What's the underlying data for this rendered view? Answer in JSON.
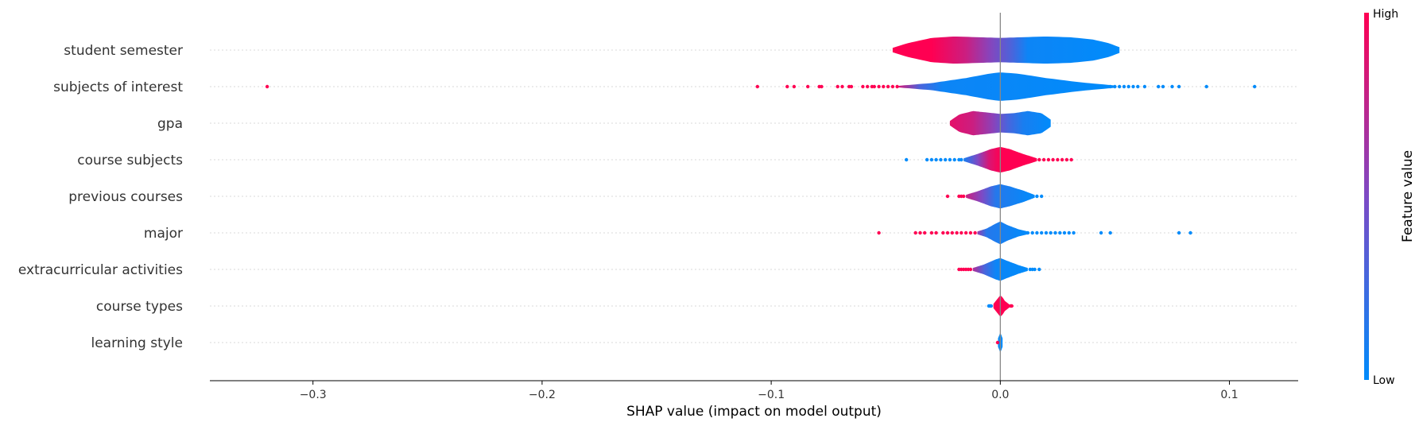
{
  "chart_data": {
    "type": "violin",
    "xlabel": "SHAP value (impact on model output)",
    "xlim": [
      -0.345,
      0.13
    ],
    "xticks": [
      {
        "value": -0.3,
        "label": "−0.3"
      },
      {
        "value": -0.2,
        "label": "−0.2"
      },
      {
        "value": -0.1,
        "label": "−0.1"
      },
      {
        "value": 0.0,
        "label": "0.0"
      },
      {
        "value": 0.1,
        "label": "0.1"
      }
    ],
    "colorbar": {
      "title": "Feature value",
      "high_label": "High",
      "low_label": "Low",
      "high_color": "#ff0052",
      "low_color": "#008bfb"
    },
    "features": [
      {
        "name": "student semester",
        "violin": {
          "min": -0.047,
          "max": 0.052,
          "width": [
            [
              -0.047,
              0.15
            ],
            [
              -0.04,
              0.5
            ],
            [
              -0.03,
              0.85
            ],
            [
              -0.02,
              0.95
            ],
            [
              -0.01,
              0.9
            ],
            [
              0.0,
              0.85
            ],
            [
              0.01,
              0.9
            ],
            [
              0.02,
              0.95
            ],
            [
              0.03,
              0.9
            ],
            [
              0.04,
              0.75
            ],
            [
              0.047,
              0.5
            ],
            [
              0.052,
              0.2
            ]
          ],
          "color": [
            [
              -0.047,
              1.0
            ],
            [
              -0.03,
              1.0
            ],
            [
              -0.015,
              0.8
            ],
            [
              -0.005,
              0.55
            ],
            [
              0.005,
              0.3
            ],
            [
              0.012,
              0.05
            ],
            [
              0.052,
              0.0
            ]
          ]
        },
        "outliers": []
      },
      {
        "name": "subjects of interest",
        "violin": {
          "min": -0.045,
          "max": 0.05,
          "width": [
            [
              -0.045,
              0.05
            ],
            [
              -0.03,
              0.25
            ],
            [
              -0.015,
              0.6
            ],
            [
              -0.005,
              0.9
            ],
            [
              0.0,
              1.0
            ],
            [
              0.008,
              0.9
            ],
            [
              0.02,
              0.6
            ],
            [
              0.035,
              0.3
            ],
            [
              0.05,
              0.08
            ]
          ],
          "color": [
            [
              -0.045,
              0.85
            ],
            [
              -0.035,
              0.3
            ],
            [
              -0.025,
              0.05
            ],
            [
              0.05,
              0.0
            ]
          ]
        },
        "outliers": [
          {
            "x": -0.32,
            "c": 1.0
          },
          {
            "x": -0.106,
            "c": 1.0
          },
          {
            "x": -0.093,
            "c": 1.0
          },
          {
            "x": -0.09,
            "c": 1.0
          },
          {
            "x": -0.084,
            "c": 1.0
          },
          {
            "x": -0.079,
            "c": 1.0
          },
          {
            "x": -0.078,
            "c": 1.0
          },
          {
            "x": -0.071,
            "c": 1.0
          },
          {
            "x": -0.069,
            "c": 1.0
          },
          {
            "x": -0.066,
            "c": 1.0
          },
          {
            "x": -0.065,
            "c": 1.0
          },
          {
            "x": -0.06,
            "c": 1.0
          },
          {
            "x": -0.058,
            "c": 1.0
          },
          {
            "x": -0.056,
            "c": 1.0
          },
          {
            "x": -0.055,
            "c": 1.0
          },
          {
            "x": -0.053,
            "c": 1.0
          },
          {
            "x": -0.051,
            "c": 1.0
          },
          {
            "x": -0.049,
            "c": 1.0
          },
          {
            "x": -0.047,
            "c": 1.0
          },
          {
            "x": -0.045,
            "c": 1.0
          },
          {
            "x": 0.048,
            "c": 0.0
          },
          {
            "x": 0.05,
            "c": 0.0
          },
          {
            "x": 0.052,
            "c": 0.0
          },
          {
            "x": 0.054,
            "c": 0.0
          },
          {
            "x": 0.056,
            "c": 0.0
          },
          {
            "x": 0.058,
            "c": 0.0
          },
          {
            "x": 0.06,
            "c": 0.0
          },
          {
            "x": 0.063,
            "c": 0.0
          },
          {
            "x": 0.069,
            "c": 0.0
          },
          {
            "x": 0.071,
            "c": 0.0
          },
          {
            "x": 0.075,
            "c": 0.0
          },
          {
            "x": 0.078,
            "c": 0.0
          },
          {
            "x": 0.09,
            "c": 0.0
          },
          {
            "x": 0.111,
            "c": 0.0
          }
        ]
      },
      {
        "name": "gpa",
        "violin": {
          "min": -0.022,
          "max": 0.022,
          "width": [
            [
              -0.022,
              0.15
            ],
            [
              -0.018,
              0.6
            ],
            [
              -0.012,
              0.85
            ],
            [
              -0.006,
              0.75
            ],
            [
              0.0,
              0.65
            ],
            [
              0.006,
              0.7
            ],
            [
              0.012,
              0.85
            ],
            [
              0.018,
              0.7
            ],
            [
              0.022,
              0.25
            ]
          ],
          "color": [
            [
              -0.022,
              0.9
            ],
            [
              -0.012,
              0.8
            ],
            [
              -0.003,
              0.55
            ],
            [
              0.003,
              0.3
            ],
            [
              0.01,
              0.1
            ],
            [
              0.022,
              0.0
            ]
          ]
        },
        "outliers": []
      },
      {
        "name": "course subjects",
        "violin": {
          "min": -0.016,
          "max": 0.016,
          "width": [
            [
              -0.016,
              0.1
            ],
            [
              -0.01,
              0.4
            ],
            [
              -0.004,
              0.75
            ],
            [
              0.0,
              0.9
            ],
            [
              0.004,
              0.75
            ],
            [
              0.01,
              0.4
            ],
            [
              0.016,
              0.1
            ]
          ],
          "color": [
            [
              -0.016,
              0.1
            ],
            [
              -0.01,
              0.5
            ],
            [
              -0.005,
              0.85
            ],
            [
              0.0,
              1.0
            ],
            [
              0.016,
              1.0
            ]
          ]
        },
        "outliers": [
          {
            "x": -0.041,
            "c": 0.0
          },
          {
            "x": -0.032,
            "c": 0.0
          },
          {
            "x": -0.03,
            "c": 0.0
          },
          {
            "x": -0.028,
            "c": 0.0
          },
          {
            "x": -0.026,
            "c": 0.0
          },
          {
            "x": -0.024,
            "c": 0.0
          },
          {
            "x": -0.022,
            "c": 0.0
          },
          {
            "x": -0.02,
            "c": 0.0
          },
          {
            "x": -0.018,
            "c": 0.0
          },
          {
            "x": -0.017,
            "c": 0.0
          },
          {
            "x": 0.017,
            "c": 1.0
          },
          {
            "x": 0.019,
            "c": 1.0
          },
          {
            "x": 0.021,
            "c": 1.0
          },
          {
            "x": 0.023,
            "c": 1.0
          },
          {
            "x": 0.025,
            "c": 1.0
          },
          {
            "x": 0.027,
            "c": 1.0
          },
          {
            "x": 0.029,
            "c": 1.0
          },
          {
            "x": 0.031,
            "c": 1.0
          }
        ]
      },
      {
        "name": "previous courses",
        "violin": {
          "min": -0.015,
          "max": 0.015,
          "width": [
            [
              -0.015,
              0.1
            ],
            [
              -0.01,
              0.35
            ],
            [
              -0.004,
              0.7
            ],
            [
              0.0,
              0.85
            ],
            [
              0.004,
              0.7
            ],
            [
              0.01,
              0.4
            ],
            [
              0.015,
              0.1
            ]
          ],
          "color": [
            [
              -0.015,
              0.8
            ],
            [
              -0.008,
              0.5
            ],
            [
              -0.002,
              0.15
            ],
            [
              0.015,
              0.0
            ]
          ]
        },
        "outliers": [
          {
            "x": -0.023,
            "c": 1.0
          },
          {
            "x": -0.018,
            "c": 1.0
          },
          {
            "x": -0.017,
            "c": 1.0
          },
          {
            "x": -0.016,
            "c": 1.0
          },
          {
            "x": 0.016,
            "c": 0.0
          },
          {
            "x": 0.018,
            "c": 0.0
          }
        ]
      },
      {
        "name": "major",
        "violin": {
          "min": -0.01,
          "max": 0.012,
          "width": [
            [
              -0.01,
              0.1
            ],
            [
              -0.006,
              0.3
            ],
            [
              -0.002,
              0.65
            ],
            [
              0.0,
              0.8
            ],
            [
              0.003,
              0.55
            ],
            [
              0.008,
              0.25
            ],
            [
              0.012,
              0.1
            ]
          ],
          "color": [
            [
              -0.01,
              0.6
            ],
            [
              -0.006,
              0.15
            ],
            [
              0.012,
              0.0
            ]
          ]
        },
        "outliers": [
          {
            "x": -0.053,
            "c": 1.0
          },
          {
            "x": -0.037,
            "c": 1.0
          },
          {
            "x": -0.035,
            "c": 1.0
          },
          {
            "x": -0.033,
            "c": 1.0
          },
          {
            "x": -0.03,
            "c": 1.0
          },
          {
            "x": -0.028,
            "c": 1.0
          },
          {
            "x": -0.025,
            "c": 1.0
          },
          {
            "x": -0.023,
            "c": 1.0
          },
          {
            "x": -0.021,
            "c": 1.0
          },
          {
            "x": -0.019,
            "c": 1.0
          },
          {
            "x": -0.017,
            "c": 1.0
          },
          {
            "x": -0.015,
            "c": 1.0
          },
          {
            "x": -0.013,
            "c": 1.0
          },
          {
            "x": -0.011,
            "c": 1.0
          },
          {
            "x": 0.012,
            "c": 0.0
          },
          {
            "x": 0.014,
            "c": 0.0
          },
          {
            "x": 0.016,
            "c": 0.0
          },
          {
            "x": 0.018,
            "c": 0.0
          },
          {
            "x": 0.02,
            "c": 0.0
          },
          {
            "x": 0.022,
            "c": 0.0
          },
          {
            "x": 0.024,
            "c": 0.0
          },
          {
            "x": 0.026,
            "c": 0.0
          },
          {
            "x": 0.028,
            "c": 0.0
          },
          {
            "x": 0.03,
            "c": 0.0
          },
          {
            "x": 0.032,
            "c": 0.0
          },
          {
            "x": 0.044,
            "c": 0.0
          },
          {
            "x": 0.048,
            "c": 0.0
          },
          {
            "x": 0.078,
            "c": 0.0
          },
          {
            "x": 0.083,
            "c": 0.0
          }
        ]
      },
      {
        "name": "extracurricular activities",
        "violin": {
          "min": -0.012,
          "max": 0.012,
          "width": [
            [
              -0.012,
              0.1
            ],
            [
              -0.007,
              0.35
            ],
            [
              -0.002,
              0.7
            ],
            [
              0.0,
              0.8
            ],
            [
              0.003,
              0.6
            ],
            [
              0.008,
              0.3
            ],
            [
              0.012,
              0.1
            ]
          ],
          "color": [
            [
              -0.012,
              0.7
            ],
            [
              -0.007,
              0.3
            ],
            [
              -0.002,
              0.05
            ],
            [
              0.012,
              0.0
            ]
          ]
        },
        "outliers": [
          {
            "x": -0.018,
            "c": 1.0
          },
          {
            "x": -0.017,
            "c": 1.0
          },
          {
            "x": -0.016,
            "c": 1.0
          },
          {
            "x": -0.015,
            "c": 1.0
          },
          {
            "x": -0.014,
            "c": 1.0
          },
          {
            "x": -0.013,
            "c": 1.0
          },
          {
            "x": 0.013,
            "c": 0.0
          },
          {
            "x": 0.014,
            "c": 0.0
          },
          {
            "x": 0.015,
            "c": 0.0
          },
          {
            "x": 0.017,
            "c": 0.0
          }
        ]
      },
      {
        "name": "course types",
        "violin": {
          "min": -0.003,
          "max": 0.004,
          "width": [
            [
              -0.003,
              0.15
            ],
            [
              -0.001,
              0.55
            ],
            [
              0.0,
              0.75
            ],
            [
              0.001,
              0.6
            ],
            [
              0.002,
              0.35
            ],
            [
              0.004,
              0.1
            ]
          ],
          "color": [
            [
              -0.003,
              1.0
            ],
            [
              0.004,
              1.0
            ]
          ]
        },
        "outliers": [
          {
            "x": -0.005,
            "c": 0.0
          },
          {
            "x": -0.0045,
            "c": 0.0
          },
          {
            "x": -0.004,
            "c": 0.0
          },
          {
            "x": 0.0045,
            "c": 1.0
          },
          {
            "x": 0.005,
            "c": 1.0
          }
        ]
      },
      {
        "name": "learning style",
        "violin": {
          "min": -0.001,
          "max": 0.001,
          "width": [
            [
              -0.001,
              0.3
            ],
            [
              0.0,
              0.7
            ],
            [
              0.001,
              0.3
            ]
          ],
          "color": [
            [
              -0.001,
              0.0
            ],
            [
              0.001,
              0.0
            ]
          ]
        },
        "outliers": [
          {
            "x": -0.0012,
            "c": 1.0
          }
        ]
      }
    ]
  }
}
